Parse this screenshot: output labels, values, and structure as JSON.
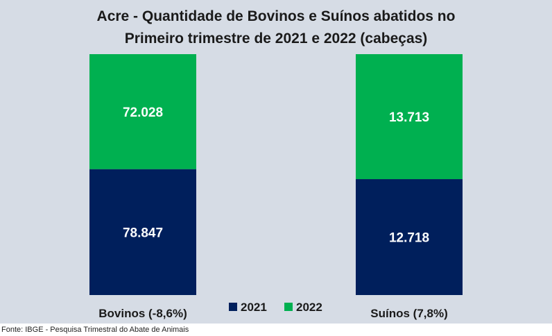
{
  "chart_data": {
    "type": "bar",
    "stacked": true,
    "normalized": true,
    "title_line1": "Acre - Quantidade de Bovinos e Suínos abatidos no",
    "title_line2": "Primeiro trimestre de 2021 e 2022 (cabeças)",
    "categories": [
      "Bovinos (-8,6%)",
      "Suínos (7,8%)"
    ],
    "series": [
      {
        "name": "2021",
        "color": "#001f5c",
        "values": [
          78847,
          12718
        ],
        "labels": [
          "78.847",
          "12.718"
        ]
      },
      {
        "name": "2022",
        "color": "#00b050",
        "values": [
          72028,
          13713
        ],
        "labels": [
          "72.028",
          "13.713"
        ]
      }
    ],
    "legend_position": "bottom",
    "grid": false
  },
  "source": "Fonte: IBGE - Pesquisa Trimestral do Abate de Animais"
}
